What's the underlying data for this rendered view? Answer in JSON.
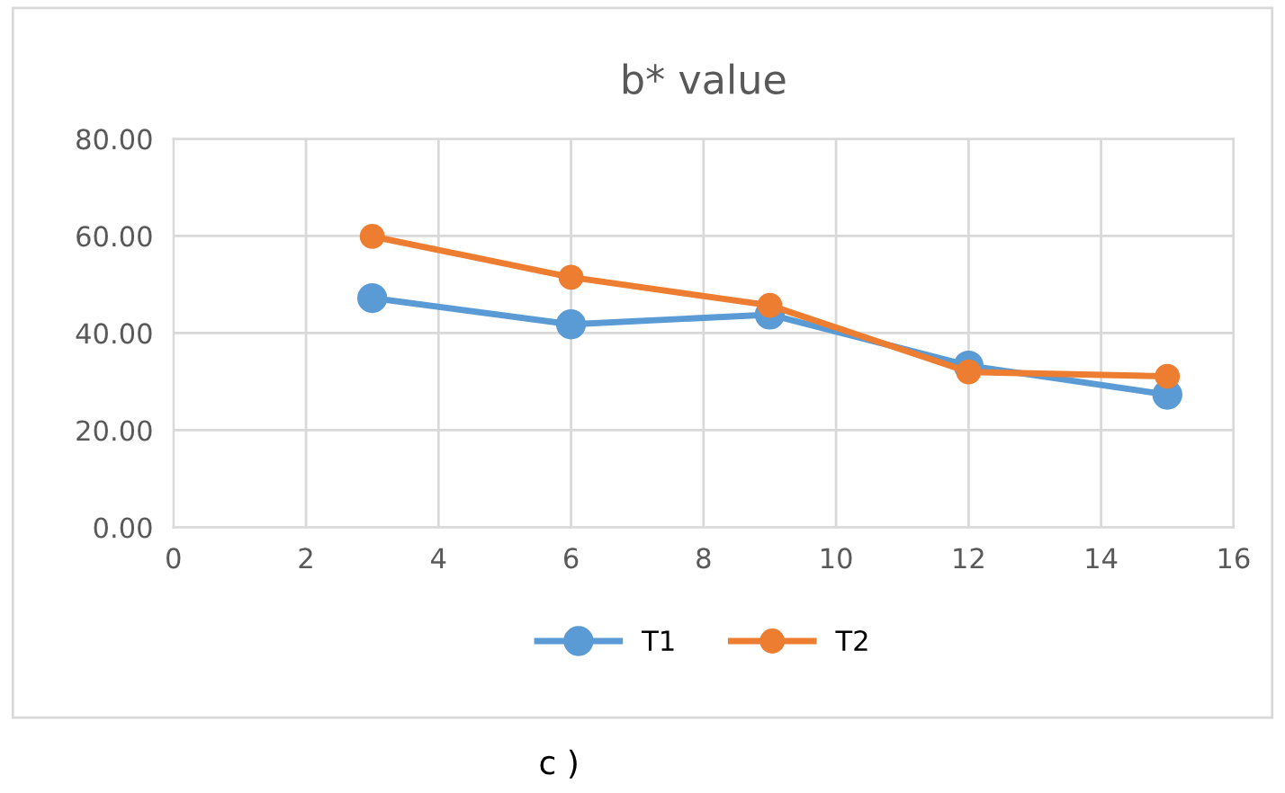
{
  "chart_data": {
    "type": "line",
    "title": "b* value",
    "x": [
      3,
      6,
      9,
      12,
      15
    ],
    "series": [
      {
        "name": "T1",
        "color": "#5b9bd5",
        "values": [
          47.2,
          41.8,
          43.8,
          33.3,
          27.3
        ]
      },
      {
        "name": "T2",
        "color": "#ed7d31",
        "values": [
          59.9,
          51.5,
          45.7,
          32.0,
          31.1
        ]
      }
    ],
    "xlim": [
      0,
      16
    ],
    "xticks": [
      0,
      2,
      4,
      6,
      8,
      10,
      12,
      14,
      16
    ],
    "ylim": [
      0,
      80
    ],
    "yticks": [
      {
        "value": 0,
        "label": "0.00"
      },
      {
        "value": 20,
        "label": "20.00"
      },
      {
        "value": 40,
        "label": "40.00"
      },
      {
        "value": 60,
        "label": "60.00"
      },
      {
        "value": 80,
        "label": "80.00"
      }
    ],
    "grid": true,
    "legend": "bottom",
    "marker": "circle",
    "line_style": "solid",
    "annotations": [
      "c )"
    ]
  }
}
